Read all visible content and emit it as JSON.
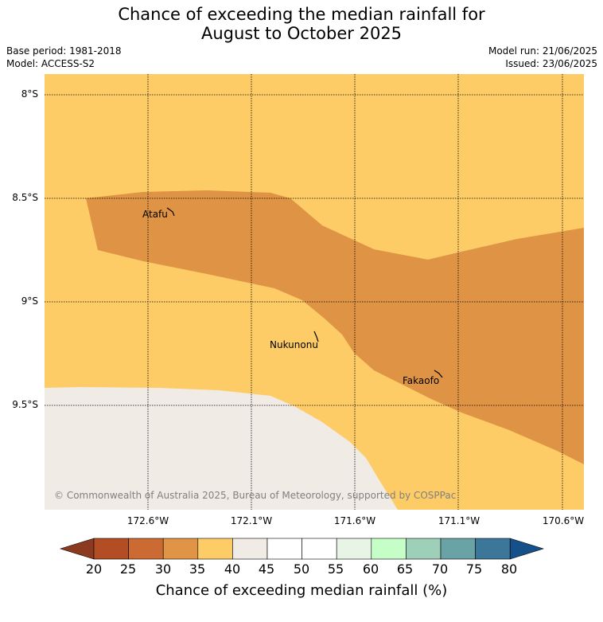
{
  "title_line1": "Chance of exceeding the median rainfall for",
  "title_line2": "August to October 2025",
  "base_period": "Base period: 1981-2018",
  "model": "Model: ACCESS-S2",
  "model_run": "Model run: 21/06/2025",
  "issued": "Issued: 23/06/2025",
  "copyright": "© Commonwealth of Australia 2025, Bureau of Meteorology, supported by COSPPac",
  "places": {
    "atafu": "Atafu",
    "nukunonu": "Nukunonu",
    "fakaofo": "Fakaofo"
  },
  "lat_labels": [
    "8°S",
    "8.5°S",
    "9°S",
    "9.5°S"
  ],
  "lon_labels": [
    "172.6°W",
    "172.1°W",
    "171.6°W",
    "171.1°W",
    "170.6°W"
  ],
  "colorbar": {
    "title": "Chance of exceeding median rainfall (%)",
    "ticks": [
      "20",
      "25",
      "30",
      "35",
      "40",
      "45",
      "50",
      "55",
      "60",
      "65",
      "70",
      "75",
      "80"
    ],
    "colors": [
      "#8b3a1f",
      "#b24d24",
      "#cc6a34",
      "#e09546",
      "#fdcc66",
      "#f0ebe5",
      "#ffffff",
      "#ffffff",
      "#e8f5e6",
      "#c6fec8",
      "#9ecfb8",
      "#6aa3a6",
      "#3c7699",
      "#15508a"
    ]
  },
  "colors": {
    "band_30_35": "#df9345",
    "band_35_40": "#fdcc66",
    "band_40_45": "#f0ebe5"
  }
}
